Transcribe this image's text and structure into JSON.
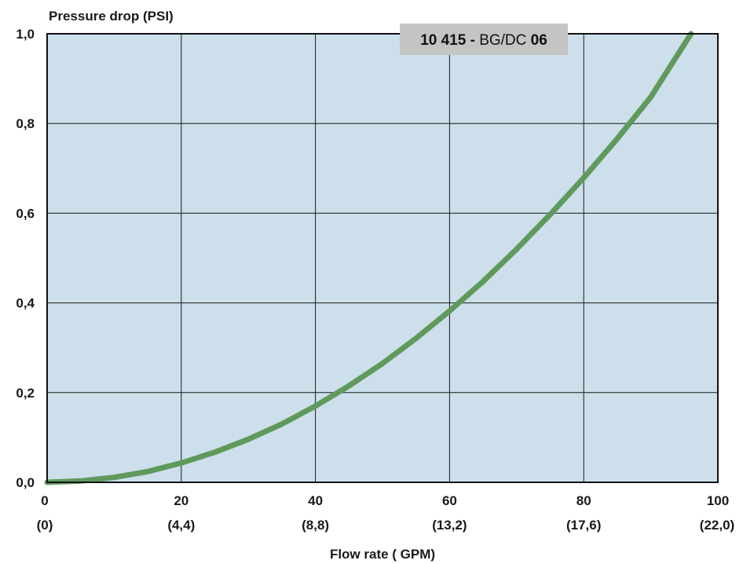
{
  "chart_data": {
    "type": "line",
    "title": "",
    "ylabel": "Pressure drop (PSI)",
    "xlabel": "Flow rate ( GPM)",
    "badge": {
      "part_a": "10 415 -",
      "part_b": " BG/DC ",
      "part_c": "06"
    },
    "xlim": [
      0,
      100
    ],
    "ylim": [
      0,
      1.0
    ],
    "x_ticks": [
      "0",
      "20",
      "40",
      "60",
      "80",
      "100"
    ],
    "x_ticks_secondary": [
      "(0)",
      "(4,4)",
      "(8,8)",
      "(13,2)",
      "(17,6)",
      "(22,0)"
    ],
    "y_ticks": [
      "0,0",
      "0,2",
      "0,4",
      "0,6",
      "0,8",
      "1,0"
    ],
    "grid": true,
    "series": [
      {
        "color": "#5f9a5c",
        "x": [
          0,
          5,
          10,
          15,
          20,
          25,
          30,
          35,
          40,
          45,
          50,
          55,
          60,
          65,
          70,
          75,
          80,
          85,
          90,
          96
        ],
        "y": [
          0,
          0.003,
          0.011,
          0.024,
          0.043,
          0.067,
          0.096,
          0.13,
          0.17,
          0.215,
          0.265,
          0.321,
          0.382,
          0.448,
          0.52,
          0.597,
          0.679,
          0.766,
          0.859,
          1.0
        ]
      }
    ],
    "colors": {
      "plot_bg": "#cddfea",
      "grid": "#1a1a1a",
      "badge_bg": "#c4c4c4"
    }
  }
}
